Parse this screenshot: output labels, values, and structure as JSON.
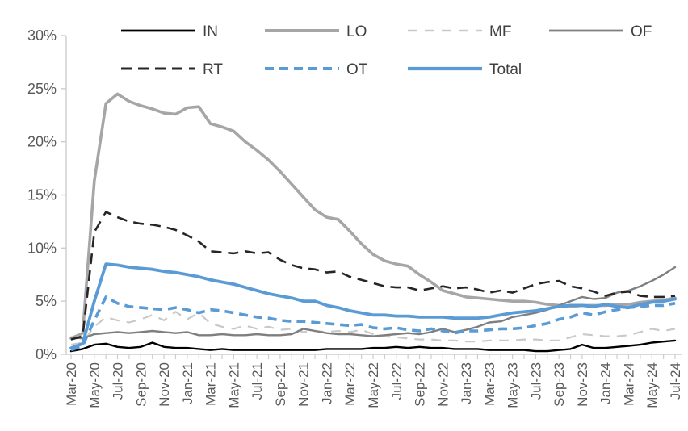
{
  "chart_data": {
    "type": "line",
    "title": "",
    "grid": "off",
    "legend_position": "top",
    "legend_rows": [
      [
        "IN",
        "LO",
        "MF",
        "OF"
      ],
      [
        "RT",
        "OT",
        "Total"
      ]
    ],
    "ylim": [
      0,
      30
    ],
    "y_ticks_percent": [
      0,
      5,
      10,
      15,
      20,
      25,
      30
    ],
    "y_tick_labels": [
      "0%",
      "5%",
      "10%",
      "15%",
      "20%",
      "25%",
      "30%"
    ],
    "x_tick_label_every": 2,
    "months": [
      "Mar-20",
      "Apr-20",
      "May-20",
      "Jun-20",
      "Jul-20",
      "Aug-20",
      "Sep-20",
      "Oct-20",
      "Nov-20",
      "Dec-20",
      "Jan-21",
      "Feb-21",
      "Mar-21",
      "Apr-21",
      "May-21",
      "Jun-21",
      "Jul-21",
      "Aug-21",
      "Sep-21",
      "Oct-21",
      "Nov-21",
      "Dec-21",
      "Jan-22",
      "Feb-22",
      "Mar-22",
      "Apr-22",
      "May-22",
      "Jun-22",
      "Jul-22",
      "Aug-22",
      "Sep-22",
      "Oct-22",
      "Nov-22",
      "Dec-22",
      "Jan-23",
      "Feb-23",
      "Mar-23",
      "Apr-23",
      "May-23",
      "Jun-23",
      "Jul-23",
      "Aug-23",
      "Sep-23",
      "Oct-23",
      "Nov-23",
      "Dec-23",
      "Jan-24",
      "Feb-24",
      "Mar-24",
      "Apr-24",
      "May-24",
      "Jun-24",
      "Jul-24"
    ],
    "series": [
      {
        "name": "IN",
        "color": "#000000",
        "line_style": "solid",
        "values": [
          0.3,
          0.5,
          0.9,
          1.0,
          0.7,
          0.6,
          0.7,
          1.1,
          0.7,
          0.6,
          0.6,
          0.5,
          0.4,
          0.5,
          0.4,
          0.4,
          0.4,
          0.4,
          0.4,
          0.4,
          0.4,
          0.4,
          0.5,
          0.5,
          0.5,
          0.5,
          0.6,
          0.6,
          0.7,
          0.6,
          0.7,
          0.6,
          0.6,
          0.5,
          0.5,
          0.5,
          0.4,
          0.4,
          0.4,
          0.4,
          0.3,
          0.3,
          0.4,
          0.5,
          0.9,
          0.6,
          0.6,
          0.7,
          0.8,
          0.9,
          1.1,
          1.2,
          1.3
        ]
      },
      {
        "name": "LO",
        "color": "#a6a6a6",
        "line_style": "solid",
        "values": [
          1.5,
          2.0,
          16.3,
          23.6,
          24.5,
          23.8,
          23.4,
          23.1,
          22.7,
          22.6,
          23.2,
          23.3,
          21.7,
          21.4,
          21.0,
          20.0,
          19.2,
          18.3,
          17.2,
          16.0,
          14.8,
          13.6,
          12.9,
          12.7,
          11.6,
          10.4,
          9.4,
          8.8,
          8.5,
          8.3,
          7.5,
          6.8,
          6.0,
          5.7,
          5.4,
          5.3,
          5.2,
          5.1,
          5.0,
          5.0,
          4.9,
          4.7,
          4.6,
          4.5,
          4.6,
          4.6,
          4.6,
          4.7,
          4.7,
          4.9,
          5.0,
          5.1,
          5.3
        ]
      },
      {
        "name": "MF",
        "color": "#c9c9c9",
        "line_style": "dashed",
        "values": [
          0.9,
          1.1,
          2.6,
          3.5,
          3.2,
          3.0,
          3.3,
          3.7,
          3.2,
          4.0,
          3.3,
          3.9,
          2.9,
          2.6,
          2.4,
          2.7,
          2.4,
          2.6,
          2.3,
          2.4,
          2.1,
          2.2,
          2.1,
          2.2,
          2.1,
          2.3,
          1.9,
          1.7,
          1.6,
          1.5,
          1.4,
          1.4,
          1.3,
          1.3,
          1.2,
          1.2,
          1.3,
          1.3,
          1.3,
          1.4,
          1.4,
          1.3,
          1.3,
          1.6,
          1.9,
          1.8,
          1.7,
          1.7,
          1.8,
          2.1,
          2.4,
          2.2,
          2.4
        ]
      },
      {
        "name": "OF",
        "color": "#7f7f7f",
        "line_style": "solid",
        "values": [
          1.6,
          1.5,
          1.9,
          2.0,
          2.1,
          2.0,
          2.1,
          2.2,
          2.1,
          2.0,
          2.1,
          1.8,
          1.8,
          1.9,
          1.8,
          1.8,
          1.9,
          1.8,
          1.8,
          1.9,
          2.4,
          2.2,
          2.0,
          1.9,
          1.9,
          1.8,
          1.7,
          1.8,
          1.9,
          2.0,
          1.9,
          2.1,
          2.4,
          2.1,
          2.3,
          2.6,
          3.0,
          3.1,
          3.5,
          3.7,
          3.9,
          4.2,
          4.6,
          5.0,
          5.4,
          5.2,
          5.3,
          5.8,
          6.0,
          6.4,
          6.9,
          7.5,
          8.2
        ]
      },
      {
        "name": "RT",
        "color": "#262626",
        "line_style": "dashed",
        "values": [
          1.4,
          1.7,
          11.5,
          13.4,
          12.9,
          12.5,
          12.3,
          12.2,
          12.0,
          11.7,
          11.2,
          10.6,
          9.7,
          9.6,
          9.5,
          9.7,
          9.5,
          9.6,
          8.9,
          8.4,
          8.1,
          8.0,
          7.7,
          7.8,
          7.3,
          7.0,
          6.7,
          6.4,
          6.3,
          6.3,
          6.0,
          6.2,
          6.4,
          6.2,
          6.3,
          6.1,
          5.8,
          6.0,
          5.8,
          6.2,
          6.6,
          6.8,
          6.9,
          6.4,
          6.2,
          5.9,
          5.5,
          5.8,
          5.9,
          5.5,
          5.4,
          5.4,
          5.5
        ]
      },
      {
        "name": "OT",
        "color": "#5b9bd5",
        "line_style": "dashed",
        "values": [
          0.4,
          0.8,
          3.2,
          5.4,
          4.8,
          4.5,
          4.4,
          4.3,
          4.2,
          4.4,
          4.2,
          3.9,
          4.2,
          4.1,
          3.9,
          3.7,
          3.5,
          3.4,
          3.2,
          3.1,
          3.1,
          3.0,
          2.9,
          2.8,
          2.7,
          2.8,
          2.5,
          2.4,
          2.5,
          2.3,
          2.2,
          2.4,
          2.2,
          2.0,
          2.2,
          2.2,
          2.3,
          2.4,
          2.4,
          2.5,
          2.7,
          2.9,
          3.3,
          3.5,
          3.9,
          3.7,
          4.0,
          4.2,
          4.4,
          4.5,
          4.6,
          4.6,
          4.8
        ]
      },
      {
        "name": "Total",
        "color": "#5b9bd5",
        "line_style": "solid",
        "values": [
          0.6,
          1.0,
          5.0,
          8.5,
          8.4,
          8.2,
          8.1,
          8.0,
          7.8,
          7.7,
          7.5,
          7.3,
          7.0,
          6.8,
          6.6,
          6.3,
          6.0,
          5.7,
          5.5,
          5.3,
          5.0,
          5.0,
          4.6,
          4.4,
          4.1,
          3.9,
          3.7,
          3.7,
          3.6,
          3.6,
          3.5,
          3.5,
          3.5,
          3.4,
          3.4,
          3.4,
          3.5,
          3.7,
          3.9,
          4.0,
          4.1,
          4.3,
          4.5,
          4.6,
          4.6,
          4.5,
          4.7,
          4.5,
          4.4,
          4.7,
          4.9,
          5.0,
          5.2
        ]
      }
    ]
  },
  "axis": {
    "text_color": "#595959",
    "line_color": "#cdcdcd"
  },
  "legend": {
    "text_color": "#404040"
  }
}
